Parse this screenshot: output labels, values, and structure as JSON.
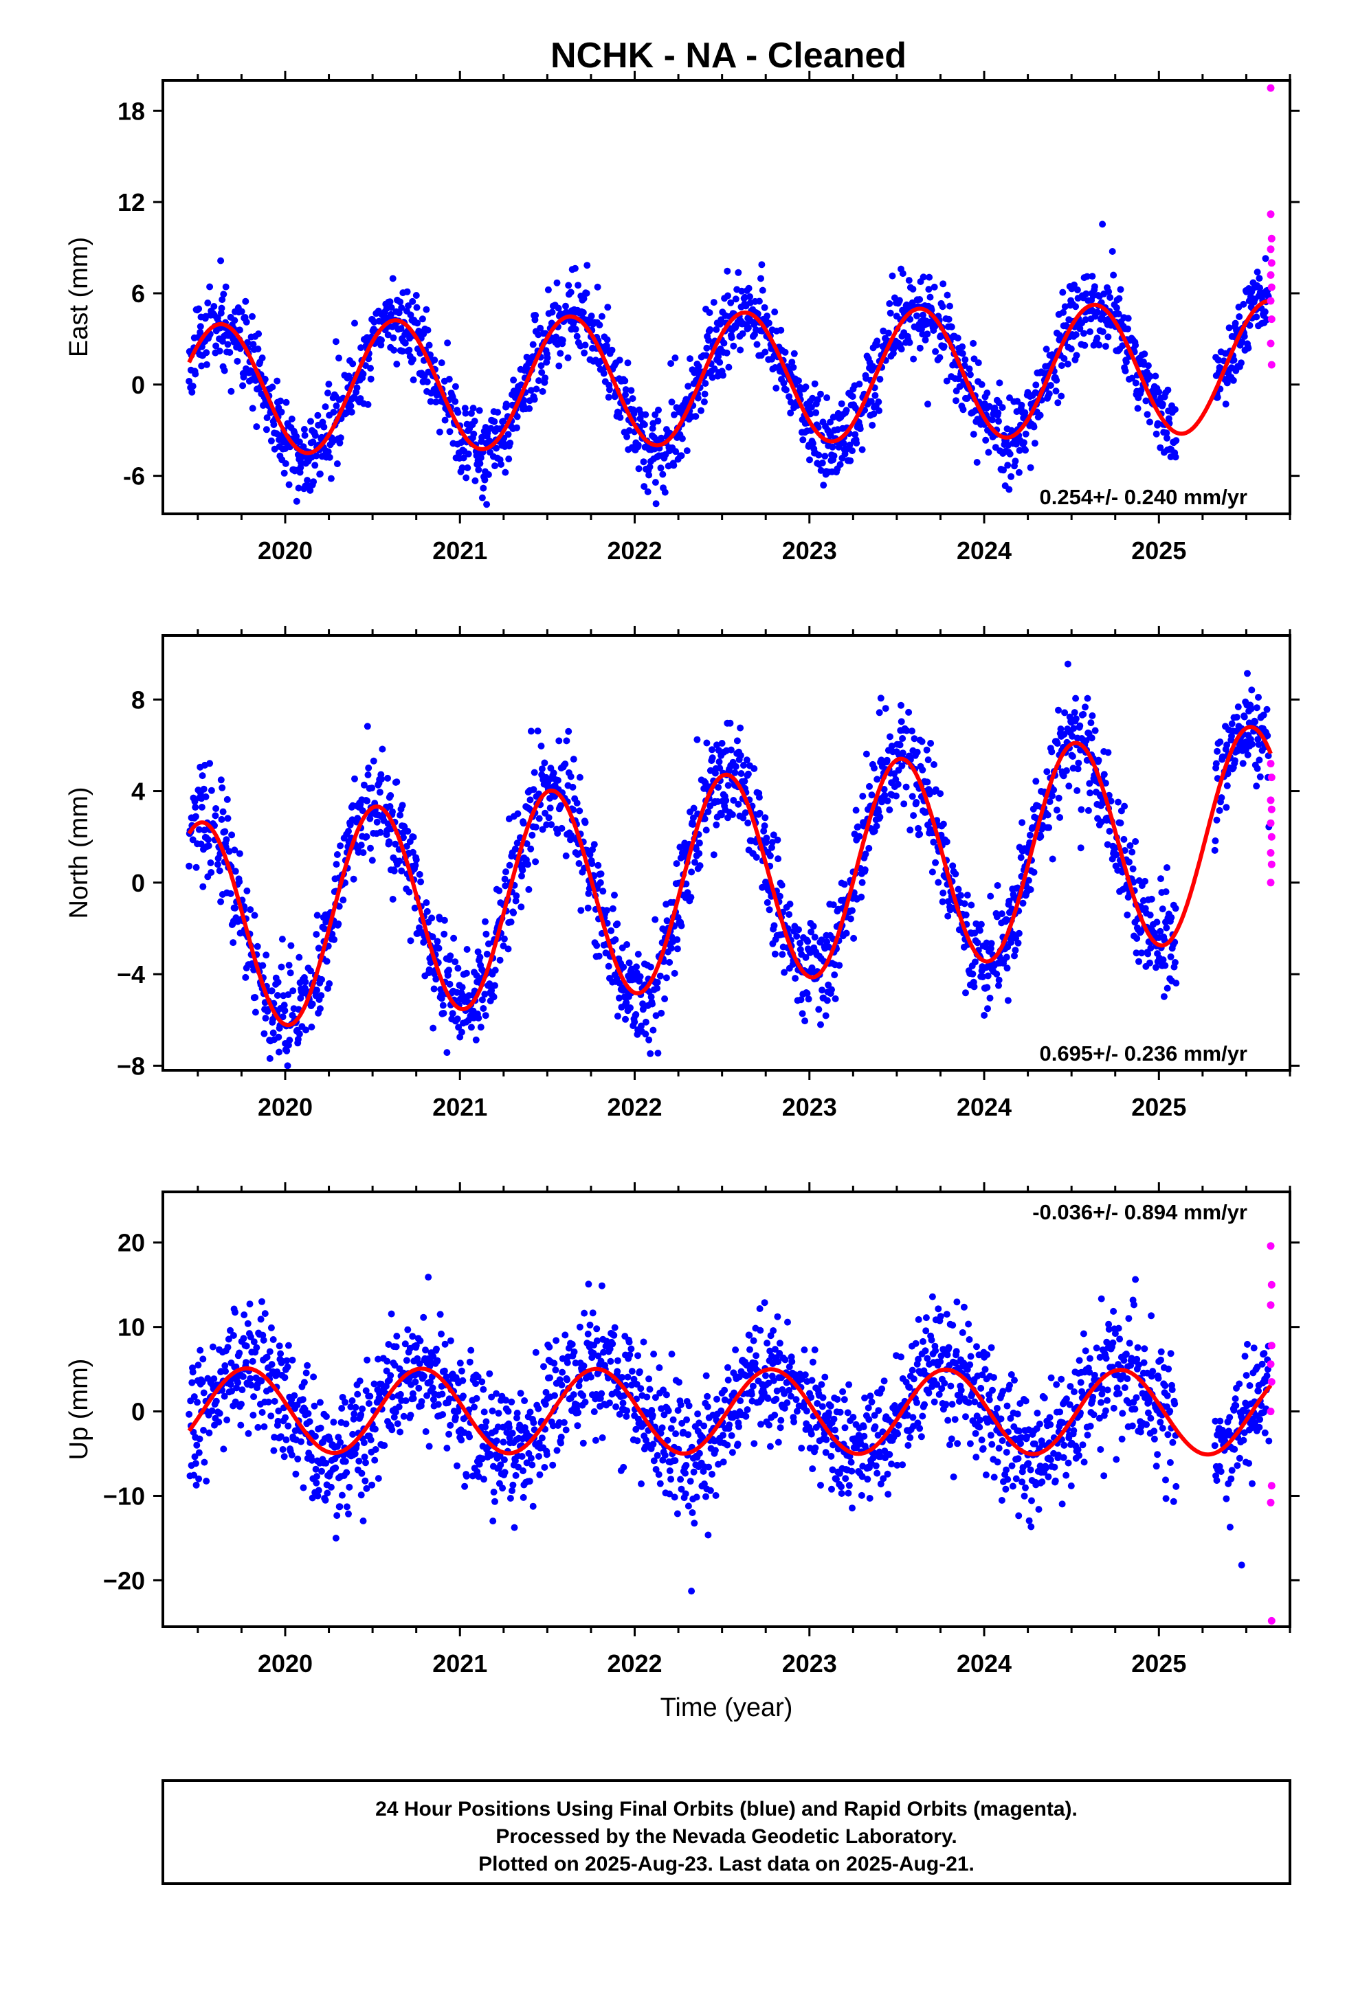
{
  "title": "NCHK  - NA - Cleaned",
  "colors": {
    "final": "#0000ff",
    "rapid": "#ff00ff",
    "model": "#ff0000",
    "frame": "#000000"
  },
  "chart_data": [
    {
      "type": "scatter",
      "ylabel": "East (mm)",
      "xlabel": "",
      "xlim": [
        2019.3,
        2025.75
      ],
      "ylim": [
        -8.5,
        20
      ],
      "yticks": [
        -6,
        0,
        6,
        12,
        18
      ],
      "ytick_labels": [
        "-6",
        "0",
        "6",
        "12",
        "18"
      ],
      "xticks": [
        2020,
        2021,
        2022,
        2023,
        2024,
        2025
      ],
      "xtick_labels": [
        "2020",
        "2021",
        "2022",
        "2023",
        "2024",
        "2025"
      ],
      "rate_label": "0.254+/- 0.240 mm/yr",
      "rate_position": "bottom-right",
      "model": {
        "mean": 0.4,
        "trend": 0.254,
        "amp": 4.3,
        "peak_phase": 0.63,
        "scatter": 1.3
      },
      "final_span": [
        2019.45,
        2025.1
      ],
      "gaps": [
        [
          2025.1,
          2025.32
        ]
      ],
      "second_span": [
        2025.32,
        2025.63
      ],
      "rapid_points": [
        [
          2025.64,
          19.5
        ],
        [
          2025.64,
          11.2
        ],
        [
          2025.645,
          9.6
        ],
        [
          2025.64,
          8.9
        ],
        [
          2025.645,
          8.0
        ],
        [
          2025.64,
          7.2
        ],
        [
          2025.645,
          6.4
        ],
        [
          2025.64,
          5.5
        ],
        [
          2025.645,
          4.3
        ],
        [
          2025.64,
          2.7
        ],
        [
          2025.645,
          1.3
        ]
      ]
    },
    {
      "type": "scatter",
      "ylabel": "North (mm)",
      "xlabel": "",
      "xlim": [
        2019.3,
        2025.75
      ],
      "ylim": [
        -8.2,
        10.8
      ],
      "yticks": [
        -8,
        -4,
        0,
        4,
        8
      ],
      "ytick_labels": [
        "−8",
        "−4",
        "0",
        "4",
        "8"
      ],
      "xticks": [
        2020,
        2021,
        2022,
        2023,
        2024,
        2025
      ],
      "xtick_labels": [
        "2020",
        "2021",
        "2022",
        "2023",
        "2024",
        "2025"
      ],
      "rate_label": "0.695+/- 0.236 mm/yr",
      "rate_position": "bottom-right",
      "model": {
        "mean": 0.1,
        "trend": 0.695,
        "amp": 4.6,
        "peak_phase": 0.52,
        "scatter": 1.1
      },
      "final_span": [
        2019.45,
        2025.1
      ],
      "gaps": [
        [
          2025.1,
          2025.32
        ]
      ],
      "second_span": [
        2025.32,
        2025.63
      ],
      "rapid_points": [
        [
          2025.64,
          5.2
        ],
        [
          2025.645,
          4.6
        ],
        [
          2025.64,
          3.6
        ],
        [
          2025.645,
          3.2
        ],
        [
          2025.64,
          2.6
        ],
        [
          2025.645,
          2.0
        ],
        [
          2025.64,
          1.3
        ],
        [
          2025.645,
          0.8
        ],
        [
          2025.64,
          0.0
        ]
      ]
    },
    {
      "type": "scatter",
      "ylabel": "Up (mm)",
      "xlabel": "Time (year)",
      "xlim": [
        2019.3,
        2025.75
      ],
      "ylim": [
        -25.5,
        26
      ],
      "yticks": [
        -20,
        -10,
        0,
        10,
        20
      ],
      "ytick_labels": [
        "−20",
        "−10",
        "0",
        "10",
        "20"
      ],
      "xticks": [
        2020,
        2021,
        2022,
        2023,
        2024,
        2025
      ],
      "xtick_labels": [
        "2020",
        "2021",
        "2022",
        "2023",
        "2024",
        "2025"
      ],
      "rate_label": "-0.036+/- 0.894 mm/yr",
      "rate_position": "top-right",
      "model": {
        "mean": 0.0,
        "trend": -0.036,
        "amp": 5.0,
        "peak_phase": 0.78,
        "scatter": 3.6
      },
      "final_span": [
        2019.45,
        2025.1
      ],
      "gaps": [
        [
          2025.1,
          2025.32
        ]
      ],
      "second_span": [
        2025.32,
        2025.63
      ],
      "rapid_points": [
        [
          2025.64,
          19.6
        ],
        [
          2025.645,
          15.0
        ],
        [
          2025.64,
          12.6
        ],
        [
          2025.645,
          7.8
        ],
        [
          2025.64,
          5.6
        ],
        [
          2025.645,
          3.5
        ],
        [
          2025.64,
          0.0
        ],
        [
          2025.645,
          -8.8
        ],
        [
          2025.64,
          -10.8
        ],
        [
          2025.645,
          -24.8
        ]
      ]
    }
  ],
  "caption": [
    "24 Hour Positions Using Final Orbits (blue) and Rapid Orbits (magenta).",
    "Processed by the Nevada Geodetic Laboratory.",
    "Plotted on 2025-Aug-23. Last data on 2025-Aug-21."
  ]
}
